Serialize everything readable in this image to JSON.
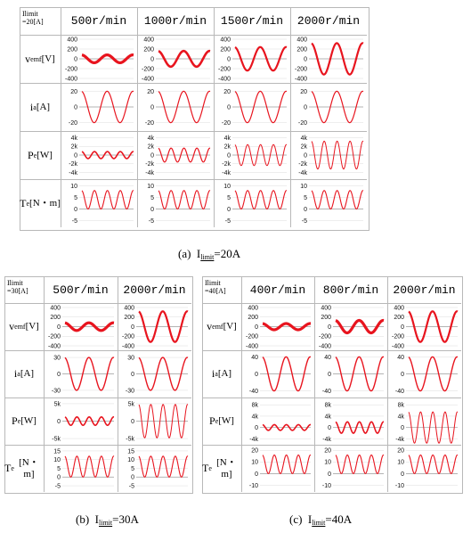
{
  "colors": {
    "wave": "#e8141e",
    "grid_line": "#b8b8b8",
    "ref_line": "#9a9a9a"
  },
  "row_labels": {
    "vemf": "vemf[V]",
    "ia": "ia[A]",
    "pe": "Pe[W]",
    "te": "Te[N・m]"
  },
  "chart_data": [
    {
      "type": "line",
      "caption": "(a)  Ilimit=20A",
      "corner": "Ilimit =20[A]",
      "columns": [
        "500r/min",
        "1000r/min",
        "1500r/min",
        "2000r/min"
      ],
      "rows": [
        {
          "label": "vemf[V]",
          "ticks": [
            "400",
            "200",
            "0",
            "-200",
            "-400"
          ],
          "ylim": [
            -400,
            400
          ],
          "cycles": [
            2,
            2,
            2,
            2
          ],
          "amplitudes": [
            80,
            160,
            240,
            320
          ],
          "offsets": [
            0,
            0,
            0,
            0
          ],
          "stroke": [
            3.2,
            2.6,
            2.2,
            2.2
          ]
        },
        {
          "label": "ia[A]",
          "ticks": [
            "20",
            "0",
            "-20"
          ],
          "ylim": [
            -25,
            25
          ],
          "cycles": [
            2,
            2,
            2,
            2
          ],
          "amplitudes": [
            20,
            20,
            20,
            20
          ],
          "offsets": [
            0,
            0,
            0,
            0
          ],
          "stroke": [
            1.2,
            1.2,
            1.2,
            1.2
          ]
        },
        {
          "label": "Pe[W]",
          "ticks": [
            "4k",
            "2k",
            "0",
            "-2k",
            "-4k"
          ],
          "ylim": [
            -4500,
            4500
          ],
          "cycles": [
            4,
            4,
            4,
            4
          ],
          "amplitudes": [
            800,
            1600,
            2400,
            3200
          ],
          "offsets": [
            0,
            0,
            0,
            0
          ],
          "stroke": [
            1.6,
            1.2,
            1,
            1
          ]
        },
        {
          "label": "Te[N・m]",
          "ticks": [
            "10",
            "5",
            "0",
            "-5"
          ],
          "ylim": [
            -6,
            11
          ],
          "cycles": [
            4,
            4,
            4,
            4
          ],
          "amplitudes": [
            4,
            4,
            4,
            4
          ],
          "offsets": [
            4,
            4,
            4,
            4
          ],
          "stroke": [
            1.1,
            1.1,
            1.1,
            1.1
          ]
        }
      ]
    },
    {
      "type": "line",
      "caption": "(b)  Ilimit=30A",
      "corner": "Ilimit =30[A]",
      "columns": [
        "500r/min",
        "2000r/min"
      ],
      "rows": [
        {
          "label": "vemf[V]",
          "ticks": [
            "400",
            "200",
            "0",
            "-200",
            "-400"
          ],
          "ylim": [
            -400,
            400
          ],
          "cycles": [
            2,
            2
          ],
          "amplitudes": [
            80,
            320
          ],
          "offsets": [
            0,
            0
          ],
          "stroke": [
            3.2,
            2.2
          ]
        },
        {
          "label": "ia[A]",
          "ticks": [
            "30",
            "0",
            "-30"
          ],
          "ylim": [
            -35,
            35
          ],
          "cycles": [
            2,
            2
          ],
          "amplitudes": [
            30,
            30
          ],
          "offsets": [
            0,
            0
          ],
          "stroke": [
            1.4,
            1.4
          ]
        },
        {
          "label": "Pe[W]",
          "ticks": [
            "5k",
            "0",
            "-5k"
          ],
          "ylim": [
            -5500,
            5500
          ],
          "cycles": [
            4,
            4
          ],
          "amplitudes": [
            1200,
            4800
          ],
          "offsets": [
            0,
            0
          ],
          "stroke": [
            1.6,
            1
          ]
        },
        {
          "label": "Te[N・m]",
          "ticks": [
            "15",
            "10",
            "5",
            "0",
            "-5"
          ],
          "ylim": [
            -6,
            16
          ],
          "cycles": [
            4,
            4
          ],
          "amplitudes": [
            6,
            6
          ],
          "offsets": [
            6,
            6
          ],
          "stroke": [
            1.1,
            1.1
          ]
        }
      ]
    },
    {
      "type": "line",
      "caption": "(c)  Ilimit=40A",
      "corner": "Ilimit =40[A]",
      "columns": [
        "400r/min",
        "800r/min",
        "2000r/min"
      ],
      "rows": [
        {
          "label": "vemf[V]",
          "ticks": [
            "400",
            "200",
            "0",
            "-200",
            "-400"
          ],
          "ylim": [
            -400,
            400
          ],
          "cycles": [
            2,
            2,
            2
          ],
          "amplitudes": [
            65,
            130,
            320
          ],
          "offsets": [
            0,
            0,
            0
          ],
          "stroke": [
            3.2,
            3.2,
            2.2
          ]
        },
        {
          "label": "ia[A]",
          "ticks": [
            "40",
            "0",
            "-40"
          ],
          "ylim": [
            -45,
            45
          ],
          "cycles": [
            2,
            2,
            2
          ],
          "amplitudes": [
            40,
            40,
            40
          ],
          "offsets": [
            0,
            0,
            0
          ],
          "stroke": [
            1.4,
            1.4,
            1.4
          ]
        },
        {
          "label": "Pe[W]",
          "ticks": [
            "8k",
            "4k",
            "0",
            "-4k"
          ],
          "ylim": [
            -4500,
            9000
          ],
          "cycles": [
            4,
            4,
            4
          ],
          "amplitudes": [
            1000,
            2000,
            5500
          ],
          "offsets": [
            0,
            0,
            0
          ],
          "stroke": [
            1.6,
            1.6,
            1
          ]
        },
        {
          "label": "Te[N・m]",
          "ticks": [
            "20",
            "10",
            "0",
            "-10"
          ],
          "ylim": [
            -12,
            21
          ],
          "cycles": [
            4,
            4,
            4
          ],
          "amplitudes": [
            8,
            8,
            8
          ],
          "offsets": [
            8,
            8,
            8
          ],
          "stroke": [
            1.1,
            1.1,
            1.1
          ]
        }
      ]
    }
  ]
}
